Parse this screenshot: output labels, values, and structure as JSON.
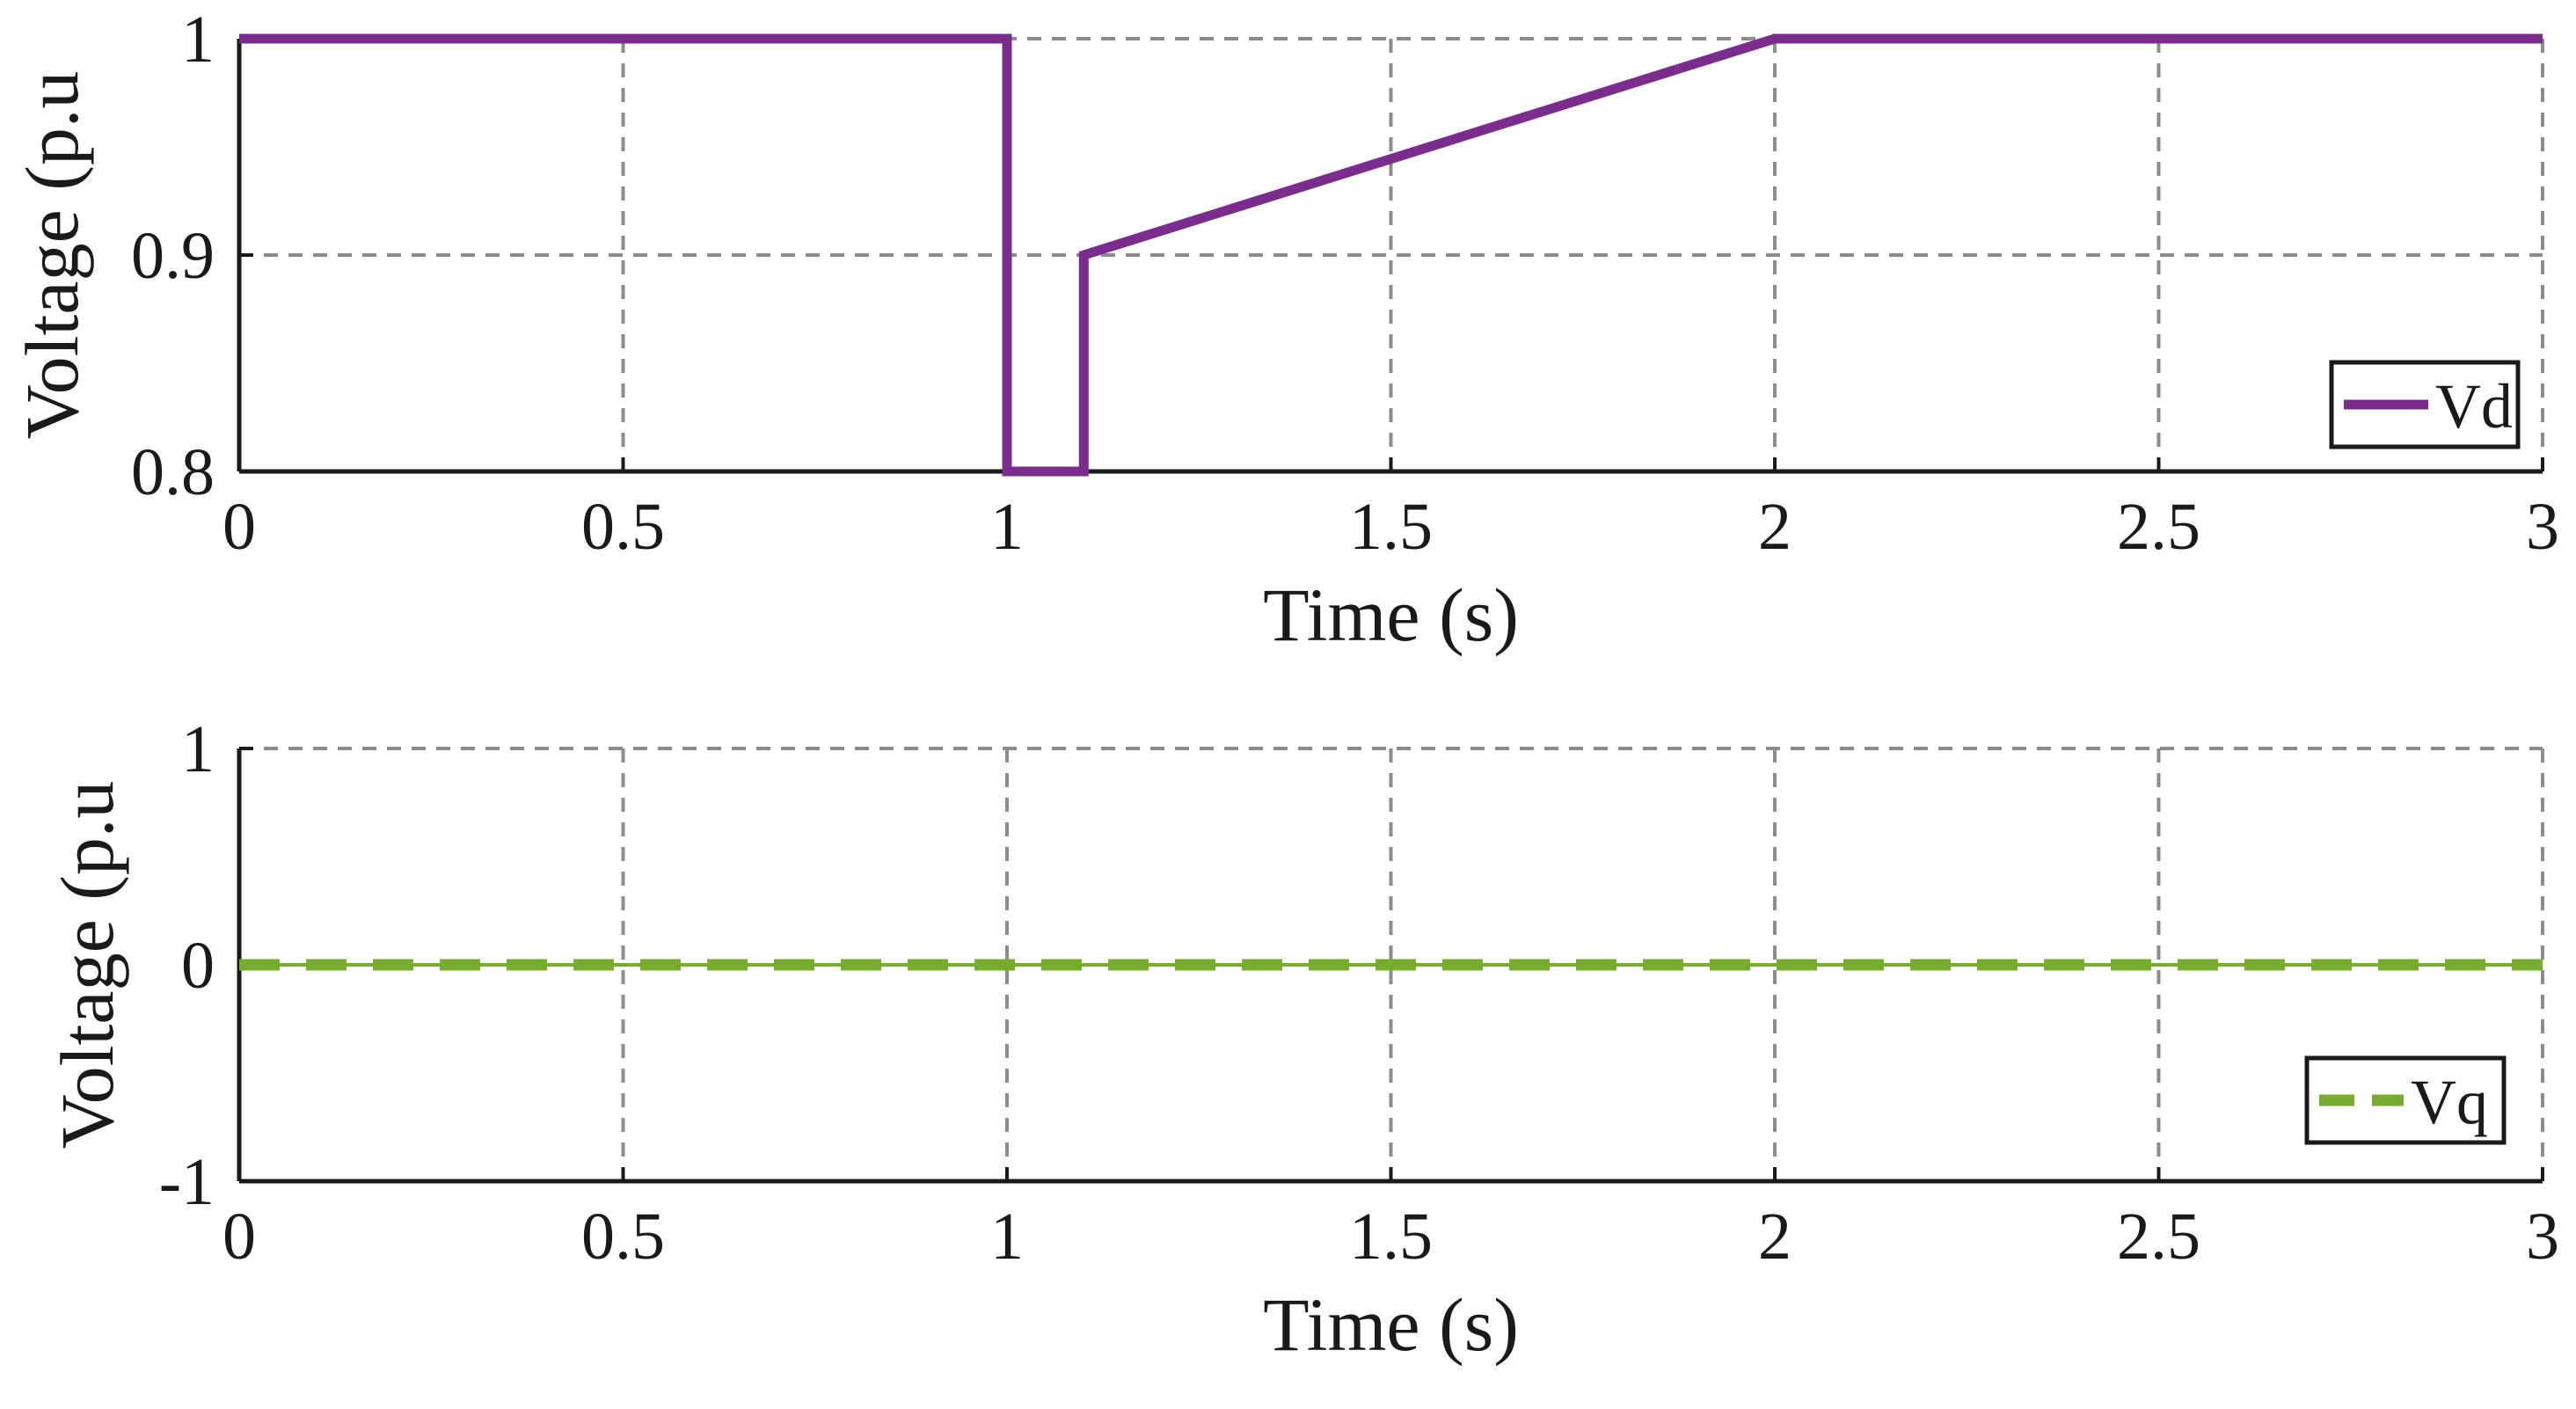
{
  "chart_data": [
    {
      "type": "line",
      "title": "",
      "xlabel": "Time (s)",
      "ylabel": "Voltage (p.u",
      "xlim": [
        0,
        3
      ],
      "ylim": [
        0.8,
        1
      ],
      "xticks": [
        0,
        0.5,
        1,
        1.5,
        2,
        2.5,
        3
      ],
      "xtick_labels": [
        "0",
        "0.5",
        "1",
        "1.5",
        "2",
        "2.5",
        "3"
      ],
      "yticks": [
        0.8,
        0.9,
        1
      ],
      "ytick_labels": [
        "0.8",
        "0.9",
        "1"
      ],
      "grid": true,
      "legend_position": "bottom-right",
      "series": [
        {
          "name": "Vd",
          "color": "#7b2d8e",
          "line_style": "solid",
          "x": [
            0,
            1.0,
            1.0,
            1.1,
            1.1,
            2.0,
            3.0
          ],
          "y": [
            1.0,
            1.0,
            0.8,
            0.8,
            0.9,
            1.0,
            1.0
          ]
        }
      ]
    },
    {
      "type": "line",
      "title": "",
      "xlabel": "Time (s)",
      "ylabel": "Voltage (p.u",
      "xlim": [
        0,
        3
      ],
      "ylim": [
        -1,
        1
      ],
      "xticks": [
        0,
        0.5,
        1,
        1.5,
        2,
        2.5,
        3
      ],
      "xtick_labels": [
        "0",
        "0.5",
        "1",
        "1.5",
        "2",
        "2.5",
        "3"
      ],
      "yticks": [
        -1,
        0,
        1
      ],
      "ytick_labels": [
        "-1",
        "0",
        "1"
      ],
      "grid": true,
      "legend_position": "bottom-right",
      "series": [
        {
          "name": "Vq",
          "color": "#77ac30",
          "line_style": "dashed",
          "x": [
            0,
            3
          ],
          "y": [
            0,
            0
          ]
        }
      ]
    }
  ]
}
